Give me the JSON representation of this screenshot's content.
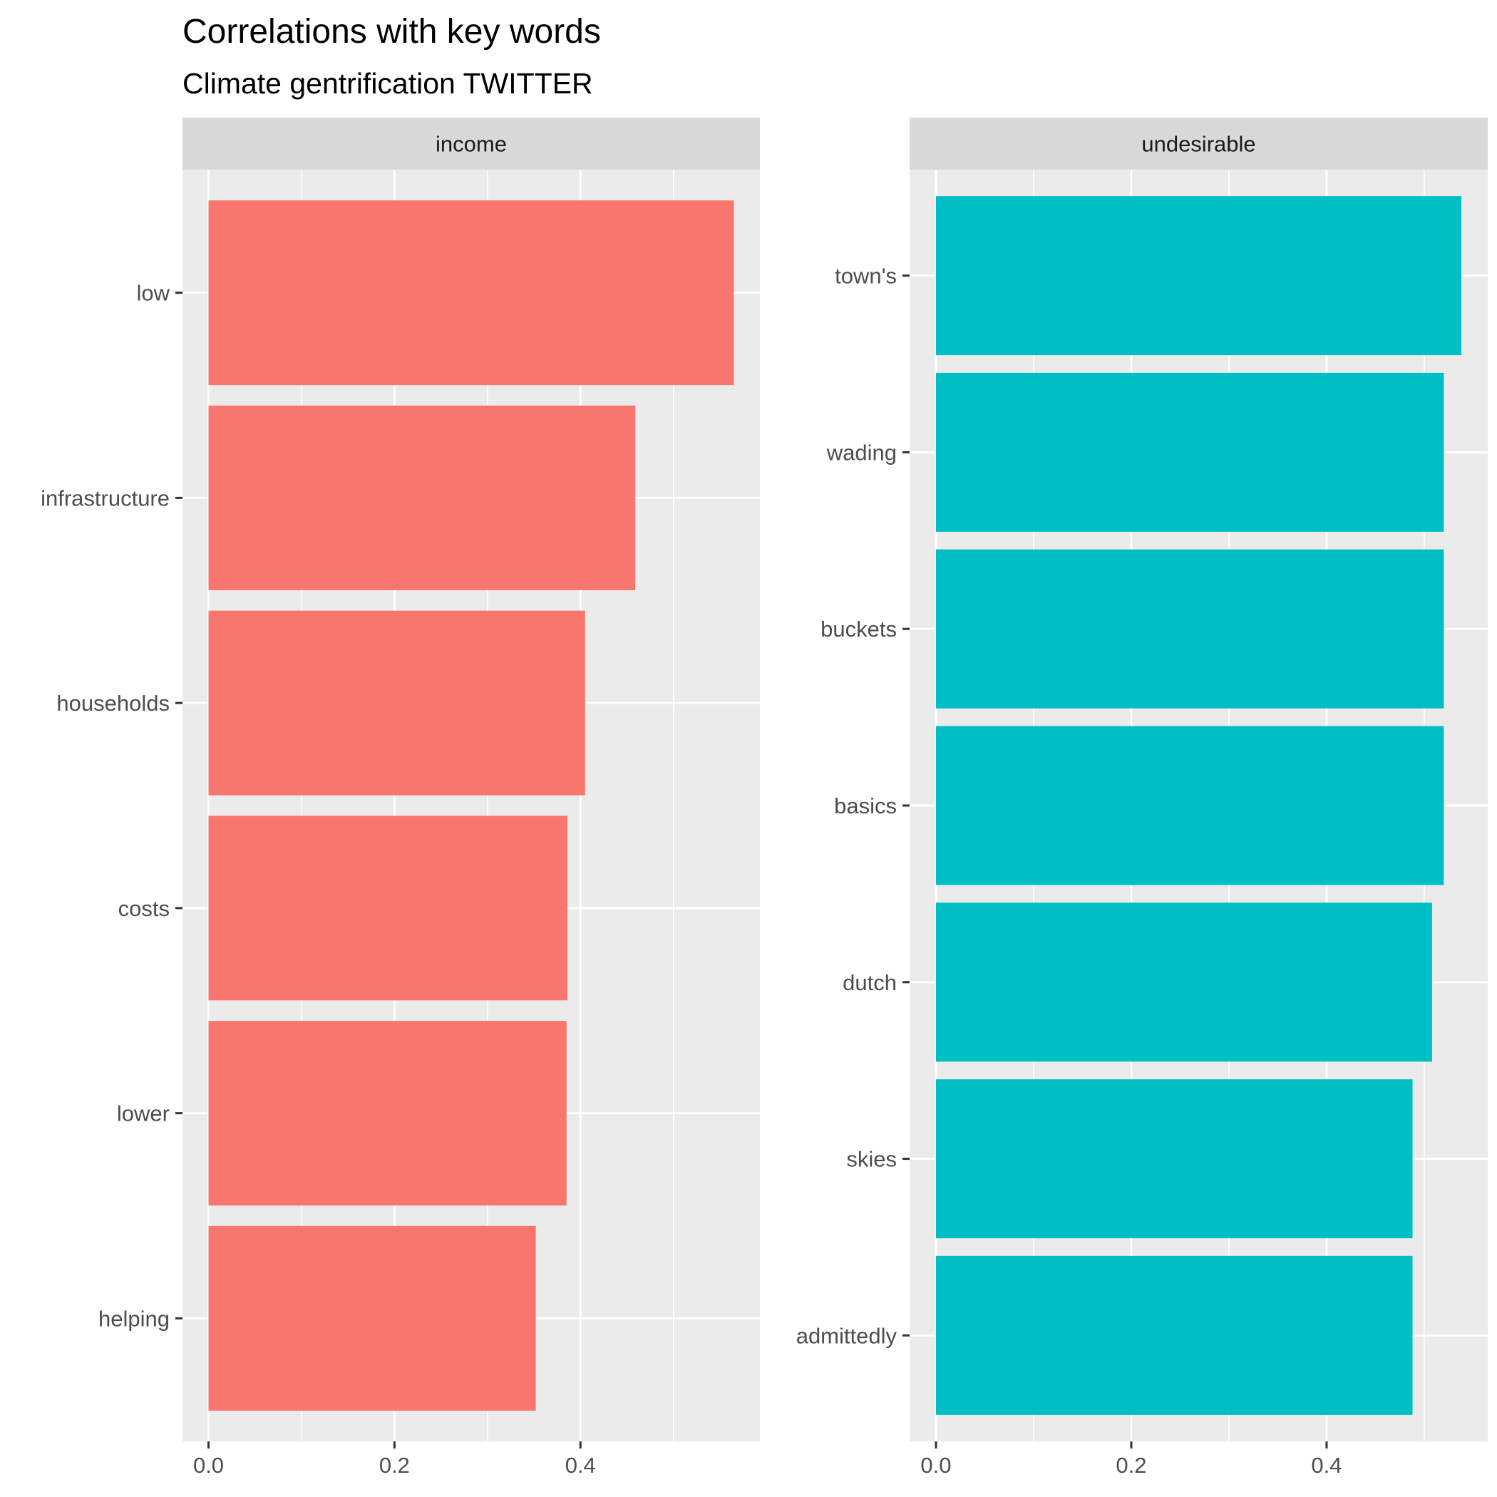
{
  "chart_data": {
    "type": "bar",
    "orientation": "horizontal",
    "title": "Correlations with key words",
    "subtitle": "Climate gentrification TWITTER",
    "grid": true,
    "facets": [
      {
        "strip": "income",
        "color": "#F8766D",
        "categories": [
          "low",
          "infrastructure",
          "households",
          "costs",
          "lower",
          "helping"
        ],
        "values": [
          0.565,
          0.459,
          0.405,
          0.386,
          0.385,
          0.352
        ],
        "xlim": [
          -0.028,
          0.593
        ],
        "xticks": [
          0.0,
          0.2,
          0.4
        ],
        "xtick_labels": [
          "0.0",
          "0.2",
          "0.4"
        ]
      },
      {
        "strip": "undesirable",
        "color": "#00BFC4",
        "categories": [
          "town's",
          "wading",
          "buckets",
          "basics",
          "dutch",
          "skies",
          "admittedly"
        ],
        "values": [
          0.538,
          0.52,
          0.52,
          0.52,
          0.508,
          0.488,
          0.488
        ],
        "xlim": [
          -0.027,
          0.565
        ],
        "xticks": [
          0.0,
          0.2,
          0.4
        ],
        "xtick_labels": [
          "0.0",
          "0.2",
          "0.4"
        ]
      }
    ]
  }
}
